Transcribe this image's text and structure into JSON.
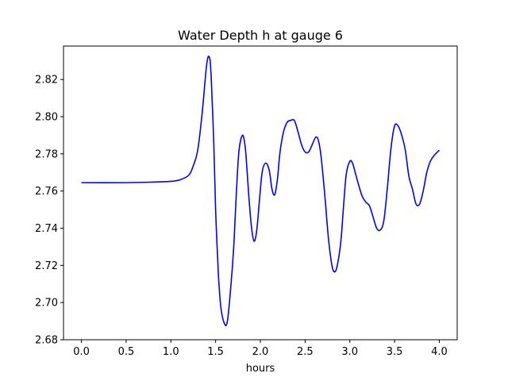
{
  "chart_data": {
    "type": "line",
    "title": "Water Depth h at gauge 6",
    "xlabel": "hours",
    "ylabel": "",
    "xlim": [
      -0.2,
      4.2
    ],
    "ylim": [
      2.68,
      2.838
    ],
    "xticks": [
      0.0,
      0.5,
      1.0,
      1.5,
      2.0,
      2.5,
      3.0,
      3.5,
      4.0
    ],
    "xtick_labels": [
      "0.0",
      "0.5",
      "1.0",
      "1.5",
      "2.0",
      "2.5",
      "3.0",
      "3.5",
      "4.0"
    ],
    "yticks": [
      2.68,
      2.7,
      2.72,
      2.74,
      2.76,
      2.78,
      2.8,
      2.82
    ],
    "ytick_labels": [
      "2.68",
      "2.70",
      "2.72",
      "2.74",
      "2.76",
      "2.78",
      "2.80",
      "2.82"
    ],
    "grid": false,
    "line_color": "#0000ff",
    "series": [
      {
        "x": [
          0.0,
          0.5,
          0.8,
          1.0,
          1.1,
          1.2,
          1.25,
          1.3,
          1.35,
          1.4,
          1.43,
          1.45,
          1.48,
          1.5,
          1.53,
          1.56,
          1.6,
          1.63,
          1.66,
          1.7,
          1.73,
          1.76,
          1.8,
          1.83,
          1.85,
          1.87,
          1.9,
          1.93,
          1.96,
          1.99,
          2.02,
          2.06,
          2.1,
          2.13,
          2.16,
          2.19,
          2.22,
          2.26,
          2.3,
          2.34,
          2.38,
          2.42,
          2.46,
          2.5,
          2.54,
          2.58,
          2.62,
          2.65,
          2.68,
          2.72,
          2.76,
          2.8,
          2.83,
          2.86,
          2.9,
          2.93,
          2.96,
          3.0,
          3.03,
          3.06,
          3.1,
          3.14,
          3.18,
          3.22,
          3.26,
          3.3,
          3.34,
          3.38,
          3.42,
          3.46,
          3.5,
          3.54,
          3.58,
          3.62,
          3.66,
          3.7,
          3.74,
          3.78,
          3.82,
          3.86,
          3.9,
          3.94,
          4.0
        ],
        "y": [
          2.7645,
          2.7645,
          2.7648,
          2.7652,
          2.766,
          2.7685,
          2.7735,
          2.782,
          2.802,
          2.828,
          2.832,
          2.822,
          2.785,
          2.75,
          2.716,
          2.697,
          2.6885,
          2.6895,
          2.703,
          2.728,
          2.757,
          2.781,
          2.79,
          2.784,
          2.772,
          2.758,
          2.741,
          2.733,
          2.739,
          2.755,
          2.77,
          2.775,
          2.771,
          2.761,
          2.758,
          2.766,
          2.781,
          2.792,
          2.797,
          2.798,
          2.798,
          2.792,
          2.785,
          2.781,
          2.781,
          2.785,
          2.789,
          2.787,
          2.778,
          2.758,
          2.735,
          2.72,
          2.7165,
          2.72,
          2.733,
          2.752,
          2.769,
          2.776,
          2.775,
          2.77,
          2.763,
          2.757,
          2.754,
          2.752,
          2.746,
          2.74,
          2.739,
          2.744,
          2.762,
          2.783,
          2.795,
          2.795,
          2.79,
          2.782,
          2.768,
          2.761,
          2.753,
          2.753,
          2.76,
          2.77,
          2.776,
          2.779,
          2.782
        ]
      }
    ]
  }
}
